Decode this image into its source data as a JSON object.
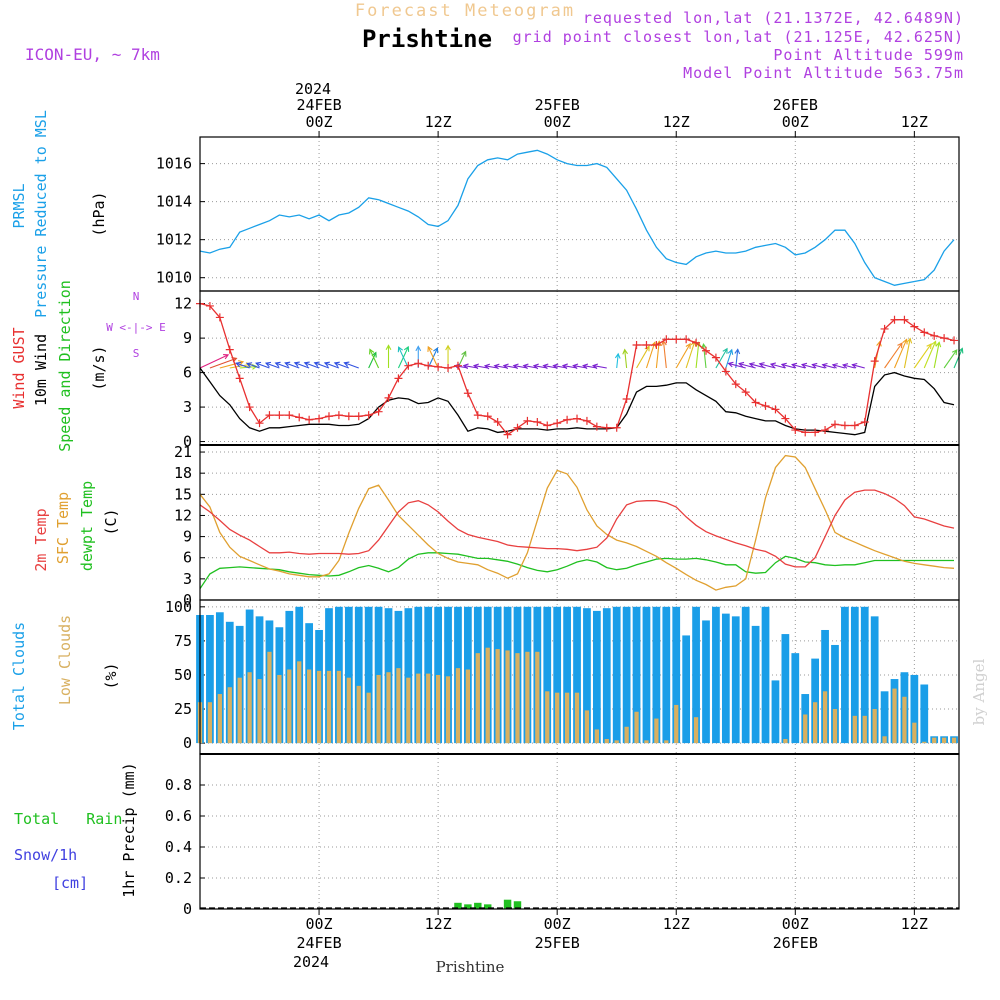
{
  "header": {
    "subtitle": "Forecast Meteogram",
    "title": "Prishtine",
    "model": "ICON-EU, ~ 7km",
    "requested": "requested lon,lat (21.1372E, 42.6489N)",
    "grid_point": "grid point closest lon,lat (21.125E, 42.625N)",
    "point_altitude": "Point Altitude 599m",
    "model_altitude": "Model Point Altitude 563.75m"
  },
  "time_axis": {
    "top_year": "2024",
    "bottom_year": "2024",
    "ticks": [
      {
        "hour": 12,
        "label": "00Z",
        "date": "24FEB"
      },
      {
        "hour": 24,
        "label": "12Z",
        "date": ""
      },
      {
        "hour": 36,
        "label": "00Z",
        "date": "25FEB"
      },
      {
        "hour": 48,
        "label": "12Z",
        "date": ""
      },
      {
        "hour": 60,
        "label": "00Z",
        "date": "26FEB"
      },
      {
        "hour": 72,
        "label": "12Z",
        "date": ""
      }
    ],
    "range": [
      0,
      76.5
    ]
  },
  "footer_label": "Prishtine",
  "watermark": "by Angel",
  "colors": {
    "pressure": "#1aa0e8",
    "gust": "#e83030",
    "wind": "#000000",
    "temp": "#e84040",
    "sfc_temp": "#e0a030",
    "dewpt": "#20c020",
    "total_clouds": "#1a9ee8",
    "low_clouds": "#d8b060",
    "rain": "#20c020",
    "snow": "#4040e0",
    "header": "#b040e0",
    "arrows_purple": "#7a20d0",
    "arrows_blue": "#3050e0"
  },
  "panels": {
    "pressure": {
      "label1": "PRMSL",
      "label2": "Pressure Reduced to MSL",
      "unit": "(hPa)"
    },
    "wind": {
      "label_gust": "Wind GUST",
      "label_wind": "10m Wind",
      "label_dir": "Speed and Direction",
      "unit": "(m/s)",
      "compass_n": "N",
      "compass_s": "S",
      "compass_we": "W <-|-> E"
    },
    "temp": {
      "label_t": "2m Temp",
      "label_sfc": "SFC Temp",
      "label_dew": "dewpt Temp",
      "unit": "(C)"
    },
    "clouds": {
      "label_total": "Total Clouds",
      "label_low": "Low Clouds",
      "unit": "(%)"
    },
    "precip": {
      "label_rain": "Total   Rain",
      "label_snow": "Snow/1h",
      "label_cm": "[cm]",
      "unit": "1hr Precip (mm)"
    }
  },
  "chart_data": [
    {
      "type": "line",
      "title": "PRMSL Pressure Reduced to MSL",
      "ylabel": "(hPa)",
      "ylim": [
        1009.3,
        1017.4
      ],
      "yticks": [
        1010,
        1012,
        1014,
        1016
      ],
      "grid": true,
      "x": [
        0,
        1,
        2,
        3,
        4,
        5,
        6,
        7,
        8,
        9,
        10,
        11,
        12,
        13,
        14,
        15,
        16,
        17,
        18,
        19,
        20,
        21,
        22,
        23,
        24,
        25,
        26,
        27,
        28,
        29,
        30,
        31,
        32,
        33,
        34,
        35,
        36,
        37,
        38,
        39,
        40,
        41,
        42,
        43,
        44,
        45,
        46,
        47,
        48,
        49,
        50,
        51,
        52,
        53,
        54,
        55,
        56,
        57,
        58,
        59,
        60,
        61,
        62,
        63,
        64,
        65,
        66,
        67,
        68,
        69,
        70,
        71,
        72,
        73,
        74,
        75,
        76
      ],
      "series": [
        {
          "name": "PRMSL",
          "values": [
            1011.4,
            1011.3,
            1011.5,
            1011.6,
            1012.4,
            1012.6,
            1012.8,
            1013.0,
            1013.3,
            1013.2,
            1013.3,
            1013.1,
            1013.3,
            1013.0,
            1013.3,
            1013.4,
            1013.7,
            1014.2,
            1014.1,
            1013.9,
            1013.7,
            1013.5,
            1013.2,
            1012.8,
            1012.7,
            1013.0,
            1013.8,
            1015.2,
            1015.9,
            1016.2,
            1016.3,
            1016.2,
            1016.5,
            1016.6,
            1016.7,
            1016.5,
            1016.2,
            1016.0,
            1015.9,
            1015.9,
            1016.0,
            1015.8,
            1015.2,
            1014.6,
            1013.6,
            1012.5,
            1011.6,
            1011.0,
            1010.8,
            1010.7,
            1011.1,
            1011.3,
            1011.4,
            1011.3,
            1011.3,
            1011.4,
            1011.6,
            1011.7,
            1011.8,
            1011.6,
            1011.2,
            1011.3,
            1011.6,
            1012.0,
            1012.5,
            1012.5,
            1011.8,
            1010.8,
            1010.0,
            1009.8,
            1009.6,
            1009.7,
            1009.8,
            1009.9,
            1010.4,
            1011.4,
            1012.0
          ]
        }
      ]
    },
    {
      "type": "line",
      "title": "Wind GUST / 10m Wind Speed and Direction",
      "ylabel": "(m/s)",
      "ylim": [
        -0.3,
        13.1
      ],
      "yticks": [
        0,
        3,
        6,
        9,
        12
      ],
      "grid": true,
      "x": [
        0,
        1,
        2,
        3,
        4,
        5,
        6,
        7,
        8,
        9,
        10,
        11,
        12,
        13,
        14,
        15,
        16,
        17,
        18,
        19,
        20,
        21,
        22,
        23,
        24,
        25,
        26,
        27,
        28,
        29,
        30,
        31,
        32,
        33,
        34,
        35,
        36,
        37,
        38,
        39,
        40,
        41,
        42,
        43,
        44,
        45,
        46,
        47,
        48,
        49,
        50,
        51,
        52,
        53,
        54,
        55,
        56,
        57,
        58,
        59,
        60,
        61,
        62,
        63,
        64,
        65,
        66,
        67,
        68,
        69,
        70,
        71,
        72,
        73,
        74,
        75,
        76
      ],
      "series": [
        {
          "name": "Wind GUST",
          "values": [
            12.0,
            11.8,
            10.8,
            8.0,
            5.5,
            3.0,
            1.6,
            2.3,
            2.3,
            2.3,
            2.1,
            1.9,
            2.0,
            2.2,
            2.3,
            2.2,
            2.2,
            2.3,
            2.6,
            3.8,
            5.5,
            6.6,
            6.8,
            6.6,
            6.5,
            6.4,
            6.6,
            4.2,
            2.3,
            2.2,
            1.7,
            0.6,
            1.2,
            1.8,
            1.7,
            1.4,
            1.6,
            1.9,
            2.0,
            1.8,
            1.3,
            1.2,
            1.2,
            3.7,
            8.4,
            8.4,
            8.4,
            8.9,
            8.9,
            8.9,
            8.6,
            7.9,
            7.3,
            6.1,
            5.0,
            4.3,
            3.4,
            3.1,
            2.8,
            2.0,
            1.0,
            0.8,
            0.8,
            1.0,
            1.5,
            1.4,
            1.4,
            1.7,
            7.0,
            9.8,
            10.6,
            10.6,
            10.0,
            9.5,
            9.2,
            9.0,
            8.8
          ]
        },
        {
          "name": "10m Wind",
          "values": [
            6.4,
            5.2,
            4.0,
            3.2,
            2.0,
            1.2,
            0.9,
            1.2,
            1.2,
            1.3,
            1.4,
            1.5,
            1.5,
            1.5,
            1.4,
            1.4,
            1.5,
            2.0,
            3.0,
            3.6,
            3.8,
            3.7,
            3.3,
            3.4,
            3.8,
            3.5,
            2.3,
            0.9,
            1.2,
            1.1,
            0.8,
            0.9,
            1.1,
            1.1,
            1.1,
            1.0,
            1.1,
            1.1,
            1.2,
            1.1,
            1.1,
            1.1,
            1.2,
            2.4,
            4.3,
            4.8,
            4.8,
            4.9,
            5.1,
            5.1,
            4.5,
            4.0,
            3.5,
            2.6,
            2.5,
            2.2,
            2.0,
            1.8,
            1.8,
            1.4,
            1.1,
            1.0,
            1.0,
            0.9,
            0.8,
            0.7,
            0.6,
            0.8,
            4.8,
            5.8,
            6.0,
            5.7,
            5.5,
            5.4,
            4.6,
            3.4,
            3.2
          ]
        }
      ],
      "direction_arrows": {
        "from": "W/SW rotating to S and E",
        "speed_scale": "6 m/s baseline"
      }
    },
    {
      "type": "line",
      "title": "2m Temp / SFC Temp / dewpt Temp",
      "ylabel": "(C)",
      "ylim": [
        0,
        22
      ],
      "yticks": [
        0,
        3,
        6,
        9,
        12,
        15,
        18,
        21
      ],
      "grid": true,
      "x": [
        0,
        1,
        2,
        3,
        4,
        5,
        6,
        7,
        8,
        9,
        10,
        11,
        12,
        13,
        14,
        15,
        16,
        17,
        18,
        19,
        20,
        21,
        22,
        23,
        24,
        25,
        26,
        27,
        28,
        29,
        30,
        31,
        32,
        33,
        34,
        35,
        36,
        37,
        38,
        39,
        40,
        41,
        42,
        43,
        44,
        45,
        46,
        47,
        48,
        49,
        50,
        51,
        52,
        53,
        54,
        55,
        56,
        57,
        58,
        59,
        60,
        61,
        62,
        63,
        64,
        65,
        66,
        67,
        68,
        69,
        70,
        71,
        72,
        73,
        74,
        75,
        76
      ],
      "series": [
        {
          "name": "2m Temp",
          "values": [
            13.5,
            12.5,
            11.3,
            10.0,
            9.2,
            8.5,
            7.6,
            6.7,
            6.7,
            6.8,
            6.6,
            6.5,
            6.6,
            6.6,
            6.6,
            6.5,
            6.6,
            7.0,
            8.5,
            10.5,
            12.5,
            13.8,
            14.1,
            13.5,
            12.5,
            11.2,
            10.0,
            9.3,
            8.9,
            8.6,
            8.3,
            7.8,
            7.6,
            7.5,
            7.4,
            7.3,
            7.3,
            7.2,
            7.0,
            7.2,
            7.5,
            8.8,
            11.5,
            13.5,
            14.0,
            14.1,
            14.1,
            13.8,
            13.2,
            11.8,
            10.6,
            9.7,
            9.1,
            8.6,
            8.1,
            7.7,
            7.2,
            6.9,
            6.2,
            5.1,
            4.7,
            4.7,
            6.0,
            9.0,
            12.0,
            14.2,
            15.3,
            15.6,
            15.6,
            15.1,
            14.4,
            13.4,
            11.8,
            11.5,
            11.0,
            10.5,
            10.2
          ]
        },
        {
          "name": "SFC Temp",
          "values": [
            15.0,
            13.2,
            9.6,
            7.5,
            6.2,
            5.6,
            5.0,
            4.4,
            4.1,
            3.7,
            3.5,
            3.3,
            3.3,
            3.7,
            5.6,
            9.5,
            13.0,
            15.8,
            16.3,
            14.2,
            12.0,
            10.6,
            9.2,
            7.8,
            6.6,
            5.9,
            5.4,
            5.2,
            5.0,
            4.3,
            3.8,
            3.1,
            3.7,
            6.7,
            11.3,
            15.9,
            18.4,
            17.9,
            16.0,
            12.8,
            10.5,
            9.3,
            8.5,
            8.1,
            7.6,
            6.9,
            6.2,
            5.3,
            4.5,
            3.6,
            2.8,
            2.2,
            1.4,
            1.8,
            2.0,
            3.0,
            8.5,
            14.5,
            18.8,
            20.5,
            20.3,
            18.8,
            15.8,
            12.8,
            9.6,
            8.8,
            8.2,
            7.6,
            7.0,
            6.5,
            6.0,
            5.5,
            5.2,
            5.0,
            4.8,
            4.6,
            4.5
          ]
        },
        {
          "name": "dewpt Temp",
          "values": [
            1.6,
            3.7,
            4.5,
            4.6,
            4.7,
            4.6,
            4.5,
            4.4,
            4.3,
            4.0,
            3.8,
            3.6,
            3.5,
            3.4,
            3.5,
            4.0,
            4.6,
            4.9,
            4.5,
            4.0,
            4.6,
            5.8,
            6.5,
            6.7,
            6.7,
            6.6,
            6.5,
            6.2,
            5.9,
            5.9,
            5.7,
            5.5,
            5.1,
            4.6,
            4.2,
            4.0,
            4.3,
            4.8,
            5.4,
            5.7,
            5.4,
            4.6,
            4.3,
            4.5,
            5.0,
            5.4,
            5.8,
            5.9,
            5.8,
            5.8,
            5.9,
            5.7,
            5.4,
            5.0,
            5.0,
            4.0,
            3.8,
            3.9,
            5.3,
            6.2,
            5.9,
            5.4,
            5.3,
            5.0,
            4.9,
            5.0,
            5.0,
            5.3,
            5.6,
            5.6,
            5.6,
            5.6,
            5.6,
            5.6,
            5.6,
            5.6,
            5.6
          ]
        }
      ]
    },
    {
      "type": "bar",
      "title": "Total Clouds / Low Clouds",
      "ylabel": "(%)",
      "ylim": [
        -8,
        105
      ],
      "yticks": [
        0,
        25,
        50,
        75,
        100
      ],
      "grid": true,
      "x": [
        0,
        1,
        2,
        3,
        4,
        5,
        6,
        7,
        8,
        9,
        10,
        11,
        12,
        13,
        14,
        15,
        16,
        17,
        18,
        19,
        20,
        21,
        22,
        23,
        24,
        25,
        26,
        27,
        28,
        29,
        30,
        31,
        32,
        33,
        34,
        35,
        36,
        37,
        38,
        39,
        40,
        41,
        42,
        43,
        44,
        45,
        46,
        47,
        48,
        49,
        50,
        51,
        52,
        53,
        54,
        55,
        56,
        57,
        58,
        59,
        60,
        61,
        62,
        63,
        64,
        65,
        66,
        67,
        68,
        69,
        70,
        71,
        72,
        73,
        74,
        75,
        76
      ],
      "series": [
        {
          "name": "Total Clouds",
          "values": [
            94,
            94,
            96,
            89,
            86,
            98,
            93,
            90,
            85,
            97,
            100,
            88,
            83,
            99,
            100,
            100,
            100,
            100,
            100,
            99,
            97,
            99,
            100,
            100,
            100,
            100,
            100,
            100,
            100,
            100,
            100,
            100,
            100,
            100,
            100,
            100,
            100,
            100,
            100,
            99,
            97,
            99,
            100,
            100,
            100,
            100,
            100,
            100,
            100,
            79,
            100,
            90,
            100,
            95,
            93,
            100,
            86,
            100,
            46,
            80,
            66,
            36,
            62,
            83,
            72,
            100,
            100,
            100,
            93,
            38,
            47,
            52,
            50,
            43,
            5,
            5,
            5
          ]
        },
        {
          "name": "Low Clouds",
          "values": [
            30,
            30,
            36,
            41,
            48,
            52,
            47,
            67,
            50,
            54,
            60,
            54,
            53,
            53,
            53,
            48,
            42,
            37,
            50,
            52,
            55,
            48,
            51,
            51,
            50,
            49,
            55,
            54,
            66,
            70,
            69,
            68,
            66,
            67,
            67,
            38,
            37,
            37,
            37,
            24,
            10,
            3,
            2,
            12,
            23,
            2,
            18,
            2,
            28,
            0,
            19,
            0,
            0,
            0,
            0,
            0,
            0,
            0,
            0,
            3,
            0,
            21,
            30,
            38,
            25,
            0,
            20,
            20,
            25,
            5,
            40,
            34,
            15,
            1,
            4,
            4,
            4
          ]
        }
      ]
    },
    {
      "type": "bar",
      "title": "Total Rain / Snow/1h [cm]",
      "ylabel": "1hr Precip (mm)",
      "ylim": [
        0,
        1.0
      ],
      "yticks": [
        0,
        0.2,
        0.4,
        0.6,
        0.8
      ],
      "grid": true,
      "x": [
        26,
        27,
        28,
        29,
        31,
        32
      ],
      "series": [
        {
          "name": "Total Rain",
          "values": [
            0.04,
            0.03,
            0.04,
            0.03,
            0.06,
            0.05
          ]
        }
      ]
    }
  ]
}
